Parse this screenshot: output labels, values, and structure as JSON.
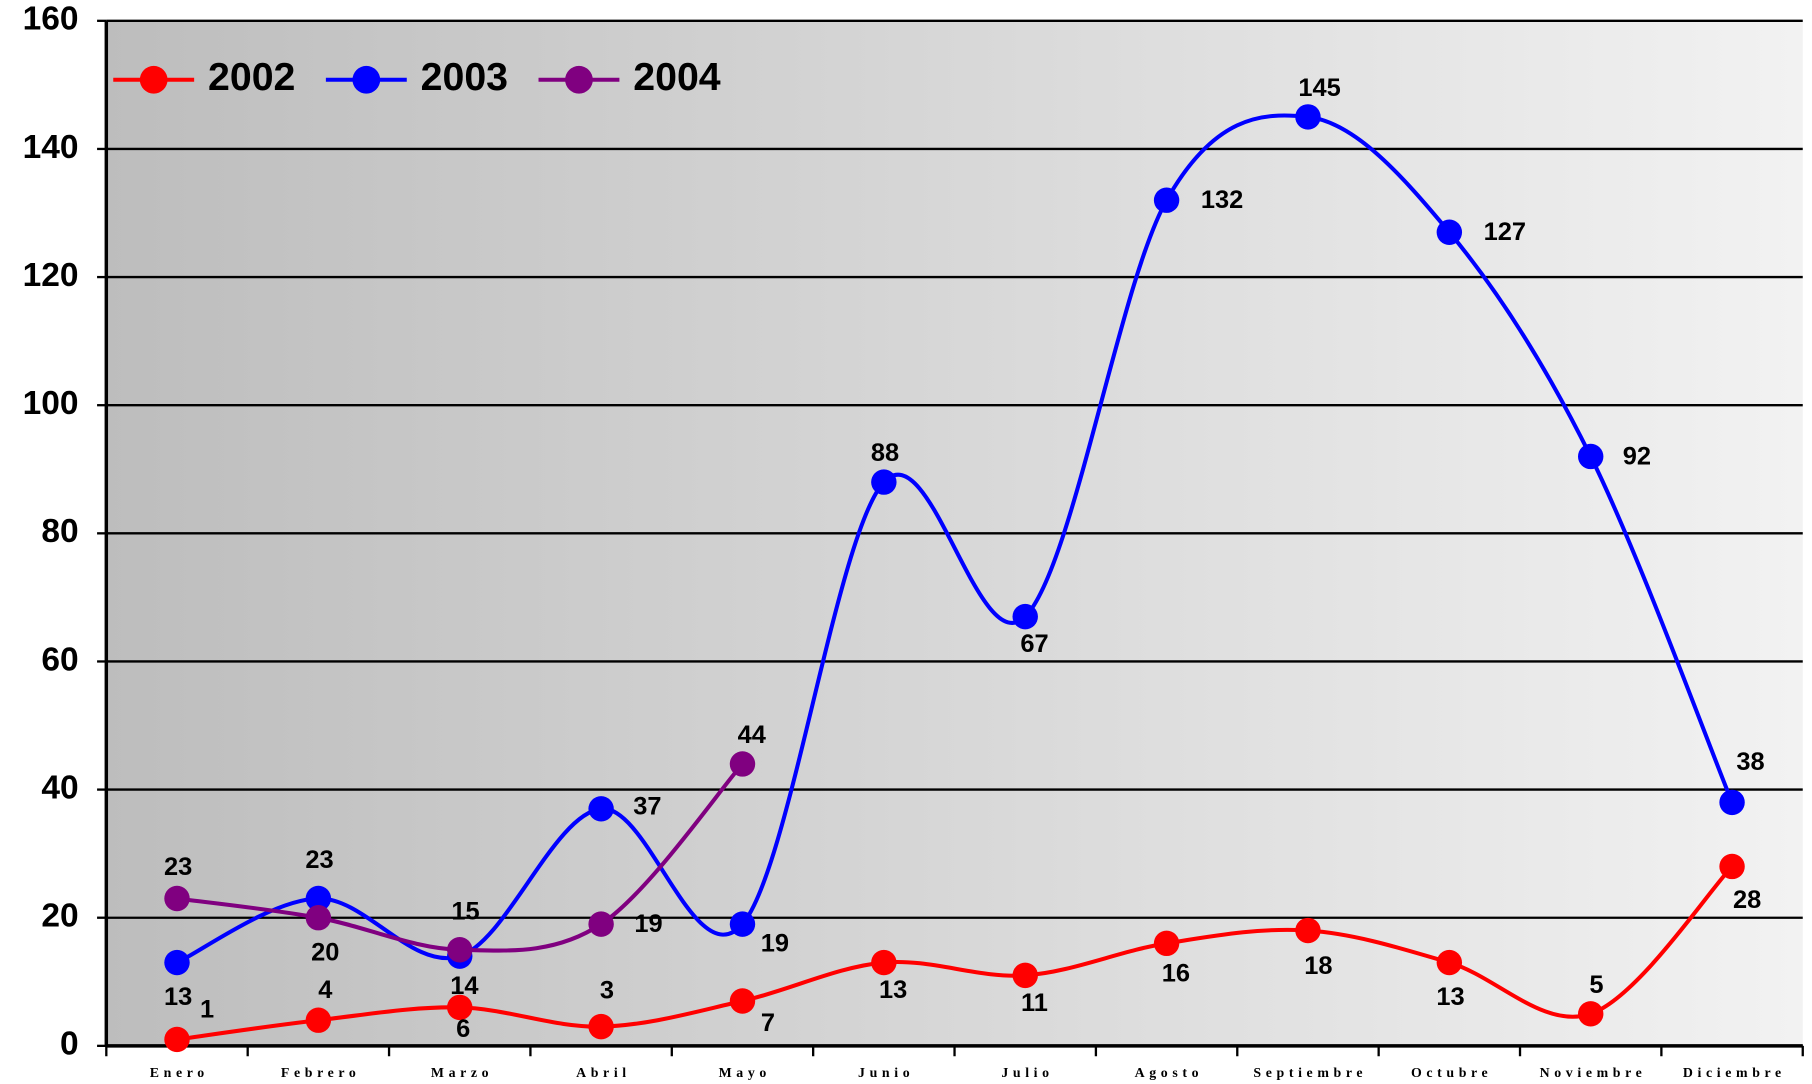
{
  "chart_data": {
    "type": "line",
    "categories": [
      "Enero",
      "Febrero",
      "Marzo",
      "Abril",
      "Mayo",
      "Junio",
      "Julio",
      "Agosto",
      "Septiembre",
      "Octubre",
      "Noviembre",
      "Diciembre"
    ],
    "series": [
      {
        "name": "2002",
        "color": "#ff0000",
        "values": [
          1,
          4,
          6,
          3,
          7,
          13,
          11,
          16,
          18,
          13,
          5,
          28
        ]
      },
      {
        "name": "2003",
        "color": "#0000ff",
        "values": [
          13,
          23,
          14,
          37,
          19,
          88,
          67,
          132,
          145,
          127,
          92,
          38
        ]
      },
      {
        "name": "2004",
        "color": "#800080",
        "values": [
          23,
          20,
          15,
          19,
          44,
          null,
          null,
          null,
          null,
          null,
          null,
          null
        ]
      }
    ],
    "ylim": [
      0,
      160
    ],
    "yticks": [
      0,
      20,
      40,
      60,
      80,
      100,
      120,
      140,
      160
    ],
    "grid": true,
    "legend": "top-left"
  }
}
